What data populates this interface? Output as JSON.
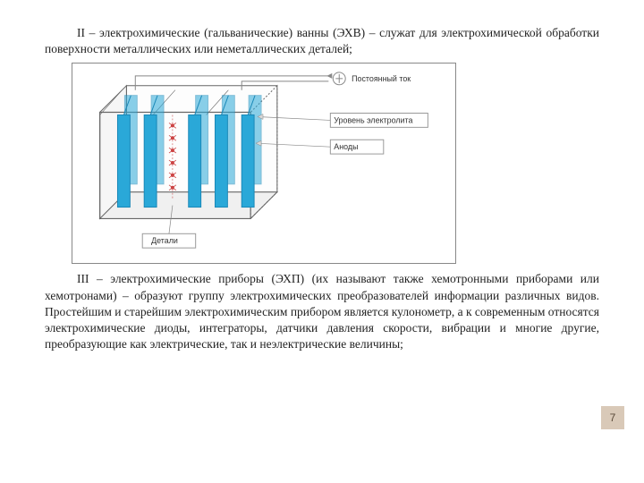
{
  "para1": "II – электрохимические (гальванические) ванны (ЭХВ) – служат для электрохимической обработки поверхности металлических или неметаллических деталей;",
  "para2": "III – электрохимические приборы (ЭХП) (их называют также хемотронными приборами или хемотронами) – образуют группу электрохимических преобразователей информации различных видов. Простейшим и старейшим электрохимическим прибором является кулонометр, а к современным относятся электрохимические диоды, интеграторы, датчики давления скорости, вибрации и многие другие, преобразующие как электрические, так и неэлектрические величины;",
  "diagram": {
    "labels": {
      "current": "Постоянный ток",
      "level": "Уровень электролита",
      "anodes": "Аноды",
      "parts": "Детали"
    },
    "colors": {
      "tank_stroke": "#666666",
      "plate_fill": "#2aa8d8",
      "plate_stroke": "#1a88b8",
      "red_dot": "#cc4444",
      "wire": "#888888",
      "box_stroke": "#999999",
      "box_fill": "#ffffff",
      "arrow_fill": "#d8d8d8"
    }
  },
  "pageNumber": "7"
}
